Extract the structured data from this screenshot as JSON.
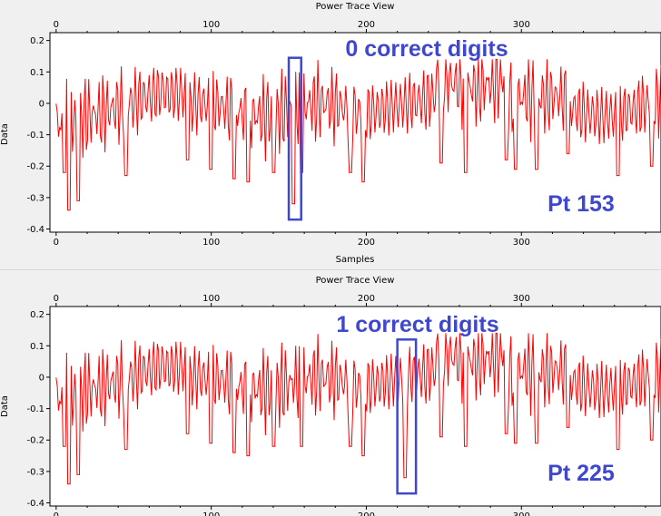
{
  "colors": {
    "trace": "#ff0000",
    "highlight": "#3f48cc",
    "panel_bg": "#ffffff",
    "window_bg": "#f0f0f0"
  },
  "chart_data": [
    {
      "type": "line",
      "title": "Power Trace View",
      "xlabel": "Samples",
      "ylabel": "Data",
      "xlim": [
        -4,
        390
      ],
      "ylim": [
        -0.41,
        0.225
      ],
      "xticks": [
        "0",
        "100",
        "200",
        "300"
      ],
      "yticks": [
        "0.2",
        "0.1",
        "0",
        "-0.1",
        "-0.2",
        "-0.3",
        "-0.4"
      ],
      "series": [
        {
          "color": "#ff0000",
          "points": []
        }
      ],
      "annotations": [
        {
          "text": "0 correct digits"
        },
        {
          "text": "Pt 153"
        }
      ],
      "highlight_box": {
        "x_range": [
          150,
          158
        ],
        "y_range": [
          -0.37,
          0.145
        ]
      }
    },
    {
      "type": "line",
      "title": "Power Trace View",
      "xlabel": "",
      "ylabel": "Data",
      "xlim": [
        -4,
        390
      ],
      "ylim": [
        -0.41,
        0.225
      ],
      "xticks": [
        "0",
        "100",
        "200",
        "300"
      ],
      "yticks": [
        "0.2",
        "0.1",
        "0",
        "-0.1",
        "-0.2",
        "-0.3",
        "-0.4"
      ],
      "series": [
        {
          "color": "#ff0000",
          "points": []
        }
      ],
      "annotations": [
        {
          "text": "1 correct digits"
        },
        {
          "text": "Pt 225"
        }
      ],
      "highlight_box": {
        "x_range": [
          220,
          232
        ],
        "y_range": [
          -0.37,
          0.12
        ]
      }
    }
  ]
}
